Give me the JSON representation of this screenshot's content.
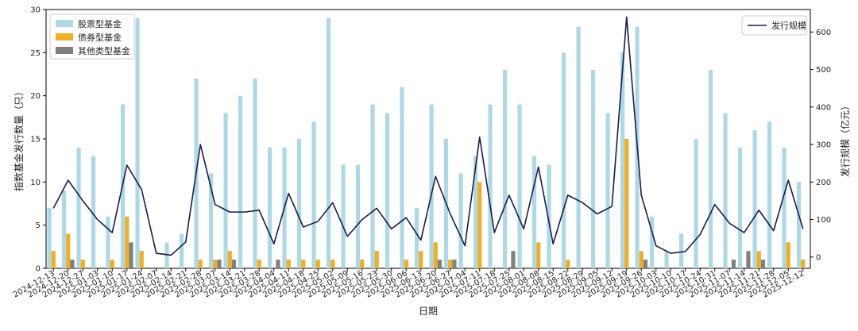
{
  "chart_data": {
    "type": "bar",
    "xlabel": "日期",
    "ylabel": "指数基金发行数量（只）",
    "y2label": "发行规模（亿元）",
    "ylim": [
      0,
      30
    ],
    "y2lim": [
      -30,
      660
    ],
    "yticks": [
      0,
      5,
      10,
      15,
      20,
      25,
      30
    ],
    "y2ticks": [
      0,
      100,
      200,
      300,
      400,
      500,
      600
    ],
    "categories": [
      "2024-12-13",
      "2024-12-20",
      "2024-12-27",
      "2025-01-03",
      "2025-01-10",
      "2025-01-17",
      "2025-01-24",
      "2025-02-07",
      "2025-02-14",
      "2025-02-21",
      "2025-02-28",
      "2025-03-07",
      "2025-03-14",
      "2025-03-21",
      "2025-03-28",
      "2025-04-04",
      "2025-04-11",
      "2025-04-18",
      "2025-04-25",
      "2025-05-02",
      "2025-05-09",
      "2025-05-16",
      "2025-05-23",
      "2025-05-30",
      "2025-06-06",
      "2025-06-13",
      "2025-06-20",
      "2025-06-27",
      "2025-07-04",
      "2025-07-11",
      "2025-07-18",
      "2025-07-25",
      "2025-08-01",
      "2025-08-08",
      "2025-08-15",
      "2025-08-22",
      "2025-08-29",
      "2025-09-05",
      "2025-09-12",
      "2025-09-19",
      "2025-09-26",
      "2025-10-03",
      "2025-10-10",
      "2025-10-17",
      "2025-10-24",
      "2025-10-31",
      "2025-11-07",
      "2025-11-14",
      "2025-11-21",
      "2025-11-28",
      "2025-12-05",
      "2025-12-12"
    ],
    "tick_labels": [
      "2024-12-13",
      "2024-12-20",
      "2024-12-27",
      "2025-01-03",
      "2025-01-10",
      "2025-01-17",
      "2025-01-24",
      "2025-02-07",
      "2025-02-14",
      "2025-02-21",
      "2025-02-28",
      "2025-03-07",
      "2025-03-14",
      "2025-03-21",
      "2025-03-28",
      "2025-04-04",
      "2025-04-11",
      "2025-04-18",
      "2025-04-25",
      "2025-05-02",
      "2025-05-09",
      "2025-05-16",
      "2025-05-23",
      "2025-05-30",
      "2025-06-06",
      "2025-06-13",
      "2025-06-20",
      "2025-06-27",
      "2025-07-04",
      "2025-07-11",
      "2025-07-18",
      "2025-07-25",
      "2025-08-01",
      "2025-08-08",
      "2025-08-15",
      "2025-08-22",
      "2025-08-29",
      "2025-09-05",
      "2025-09-12",
      "2025-09-19",
      "2025-09-26",
      "2025-10-03",
      "2025-10-10",
      "2025-10-17",
      "2025-10-24",
      "2025-10-31",
      "2025-11-07",
      "2025-11-14",
      "2025-11-21",
      "2025-11-28",
      "2025-12-05",
      "2025-12-12"
    ],
    "series": [
      {
        "name": "股票型基金",
        "kind": "bar",
        "color": "#add8e6",
        "values": [
          7,
          9,
          14,
          13,
          6,
          19,
          29,
          0,
          3,
          4,
          22,
          11,
          18,
          20,
          22,
          14,
          14,
          15,
          17,
          29,
          12,
          12,
          19,
          18,
          21,
          7,
          19,
          15,
          11,
          13,
          19,
          23,
          19,
          13,
          12,
          25,
          28,
          23,
          18,
          25,
          28,
          6,
          2,
          4,
          15,
          23,
          18,
          14,
          16,
          17,
          14,
          10
        ]
      },
      {
        "name": "债券型基金",
        "kind": "bar",
        "color": "#f0ae24",
        "values": [
          2,
          4,
          1,
          0,
          1,
          6,
          2,
          0,
          0,
          0,
          1,
          1,
          2,
          0,
          1,
          0,
          1,
          1,
          1,
          1,
          0,
          1,
          2,
          0,
          1,
          2,
          3,
          1,
          0,
          10,
          0,
          0,
          0,
          3,
          0,
          1,
          0,
          0,
          0,
          15,
          2,
          0,
          0,
          0,
          0,
          0,
          0,
          0,
          2,
          0,
          3,
          1
        ]
      },
      {
        "name": "其他类型基金",
        "kind": "bar",
        "color": "#808080",
        "values": [
          0,
          1,
          0,
          0,
          0,
          3,
          0,
          0,
          0,
          0,
          0,
          1,
          1,
          0,
          0,
          1,
          0,
          0,
          0,
          0,
          0,
          0,
          0,
          0,
          0,
          0,
          1,
          1,
          0,
          0,
          0,
          2,
          0,
          0,
          0,
          0,
          0,
          0,
          0,
          0,
          1,
          0,
          0,
          0,
          0,
          0,
          1,
          2,
          1,
          0,
          0,
          0
        ]
      },
      {
        "name": "发行规模",
        "kind": "line",
        "color": "#1a1a4e",
        "axis": "right",
        "values": [
          130,
          205,
          150,
          100,
          65,
          245,
          180,
          10,
          5,
          40,
          300,
          140,
          120,
          120,
          125,
          35,
          170,
          80,
          95,
          145,
          55,
          100,
          130,
          75,
          105,
          45,
          215,
          115,
          30,
          320,
          65,
          165,
          75,
          240,
          35,
          165,
          145,
          115,
          135,
          640,
          165,
          30,
          10,
          15,
          60,
          140,
          90,
          65,
          125,
          70,
          205,
          75
        ]
      }
    ],
    "legend_left_position": "upper-left",
    "legend_right_position": "upper-right",
    "grid": false
  }
}
